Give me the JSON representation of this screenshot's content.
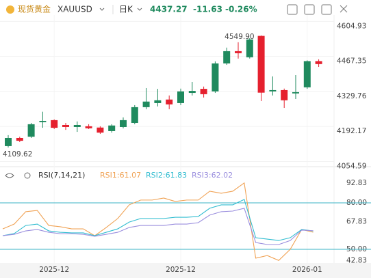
{
  "header": {
    "name": "现货黄金",
    "symbol": "XAUUSD",
    "period": "日K",
    "price": "4437.27",
    "change": "-11.63",
    "change_pct": "-0.26%"
  },
  "chart_data": [
    {
      "type": "candlestick",
      "categories": [
        null,
        null,
        null,
        null,
        "2025-12",
        null,
        null,
        null,
        null,
        null,
        null,
        null,
        null,
        null,
        null,
        "2025-12",
        null,
        null,
        null,
        null,
        null,
        null,
        null,
        null,
        null,
        null,
        "2026-01",
        null
      ],
      "open": [
        4115,
        4147,
        4152,
        4209,
        4217,
        4198,
        4190,
        4193,
        4188,
        4174,
        4190,
        4206,
        4268,
        4284,
        4298,
        4284,
        4324,
        4340,
        4330,
        4440,
        4488,
        4464,
        4548,
        4330,
        4335,
        4322,
        4346,
        4448.9
      ],
      "high": [
        4158,
        4152,
        4206,
        4250,
        4220,
        4206,
        4212,
        4201,
        4193,
        4201,
        4228,
        4276,
        4343,
        4340,
        4314,
        4341,
        4367,
        4349,
        4448,
        4502,
        4523,
        4539,
        4549.9,
        4389,
        4341,
        4394,
        4452,
        4456
      ],
      "low": [
        4109.62,
        4131,
        4147,
        4187,
        4182,
        4179,
        4171,
        4182,
        4163,
        4168,
        4185,
        4201,
        4260,
        4271,
        4260,
        4276,
        4314,
        4306,
        4324,
        4434,
        4459,
        4459,
        4292,
        4314,
        4265,
        4300,
        4340,
        4426
      ],
      "close": [
        4147,
        4136,
        4201,
        4214,
        4187,
        4190,
        4198,
        4185,
        4168,
        4196,
        4217,
        4268,
        4290,
        4295,
        4279,
        4330,
        4332,
        4319,
        4440,
        4488,
        4480,
        4534,
        4325,
        4335,
        4295,
        4327,
        4448.9,
        4437.27
      ],
      "up_color": "#1f8a5e",
      "down_color": "#e5202e",
      "ylim": [
        4037,
        4630
      ],
      "yticks": [
        4604.93,
        4467.35,
        4329.76,
        4192.17,
        4054.59
      ],
      "grid": true,
      "annotations": [
        "4549.90",
        "4109.62"
      ]
    },
    {
      "type": "line",
      "title": "RSI(7,14,21)",
      "series": [
        {
          "name": "RSI1:61.07",
          "color": "#f0a254",
          "values": [
            63.2,
            66.3,
            74.3,
            75.1,
            65.4,
            64.6,
            63.2,
            63.2,
            58.8,
            64.1,
            69.9,
            78.7,
            81.8,
            81.8,
            83.1,
            80.9,
            81.8,
            81.8,
            87.5,
            86.2,
            87.5,
            92.83,
            44.3,
            46.0,
            42.83,
            50.0,
            62.8,
            61.07
          ]
        },
        {
          "name": "RSI2:61.83",
          "color": "#2fbcd0",
          "values": [
            58.8,
            60.2,
            65.4,
            66.3,
            61.9,
            61.0,
            60.6,
            60.6,
            58.8,
            61.0,
            63.2,
            67.6,
            69.9,
            69.9,
            69.9,
            70.7,
            70.7,
            71.2,
            76.5,
            78.7,
            78.7,
            82.2,
            57.5,
            56.6,
            55.7,
            57.5,
            62.8,
            61.83
          ]
        },
        {
          "name": "RSI3:62.02",
          "color": "#9a8ede",
          "values": [
            58.8,
            59.7,
            61.9,
            62.8,
            61.0,
            60.1,
            60.1,
            59.7,
            58.4,
            59.7,
            61.0,
            64.1,
            65.4,
            65.4,
            65.4,
            66.3,
            66.3,
            67.2,
            72.1,
            74.3,
            74.7,
            76.5,
            54.4,
            53.1,
            53.1,
            55.7,
            62.4,
            62.02
          ]
        }
      ],
      "ylim": [
        41.2,
        100.7
      ],
      "yticks": [
        92.83,
        {
          "value": 80,
          "label": "80.00"
        },
        67.83,
        {
          "value": 50,
          "label": "50.00"
        },
        42.83
      ],
      "ref_lines": [
        80,
        50
      ],
      "ref_color": "#3ab3c4"
    }
  ]
}
